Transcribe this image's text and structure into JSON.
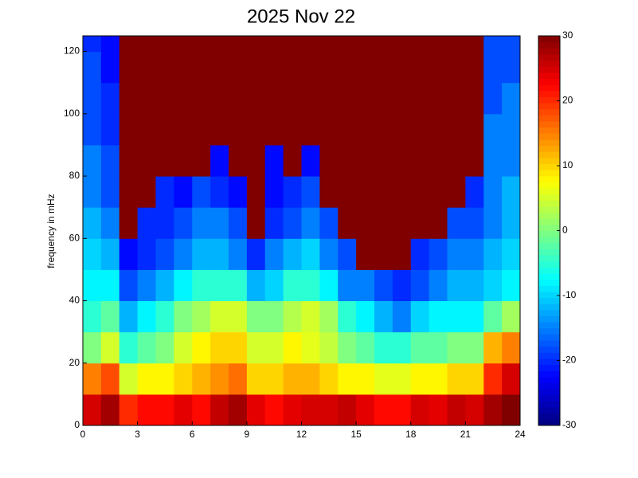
{
  "chart_data": {
    "type": "heatmap",
    "title": "2025 Nov 22",
    "ylabel": "frequency in mHz",
    "colormap": "jet",
    "x_edges": [
      0,
      1,
      2,
      3,
      4,
      5,
      6,
      7,
      8,
      9,
      10,
      11,
      12,
      13,
      14,
      15,
      16,
      17,
      18,
      19,
      20,
      21,
      22,
      23,
      24
    ],
    "y_edges": [
      0,
      10,
      20,
      30,
      40,
      50,
      60,
      70,
      80,
      90,
      100,
      110,
      120,
      125
    ],
    "values": [
      [
        25,
        28,
        20,
        22,
        22,
        24,
        22,
        26,
        28,
        24,
        22,
        24,
        25,
        25,
        26,
        24,
        22,
        22,
        25,
        24,
        26,
        25,
        28,
        30
      ],
      [
        15,
        18,
        5,
        8,
        8,
        10,
        12,
        14,
        16,
        10,
        10,
        12,
        12,
        10,
        8,
        8,
        6,
        6,
        8,
        8,
        10,
        10,
        20,
        25
      ],
      [
        0,
        5,
        -5,
        -2,
        0,
        5,
        8,
        10,
        10,
        5,
        5,
        8,
        6,
        4,
        0,
        -2,
        -5,
        -5,
        -2,
        -2,
        0,
        0,
        12,
        15
      ],
      [
        -5,
        -2,
        -12,
        -8,
        -5,
        0,
        2,
        5,
        5,
        0,
        0,
        3,
        5,
        2,
        -5,
        -8,
        -12,
        -15,
        -10,
        -8,
        -8,
        -8,
        -2,
        2
      ],
      [
        -8,
        -8,
        -18,
        -15,
        -12,
        -8,
        -5,
        -5,
        -5,
        -12,
        -10,
        -5,
        -5,
        -8,
        -15,
        -15,
        -18,
        -20,
        -18,
        -15,
        -12,
        -12,
        -10,
        -8
      ],
      [
        -10,
        -12,
        -22,
        -20,
        -18,
        -15,
        -12,
        -12,
        -15,
        -20,
        -15,
        -12,
        -10,
        -15,
        -18,
        30,
        30,
        30,
        -20,
        -18,
        -15,
        -15,
        -12,
        -10
      ],
      [
        -12,
        -15,
        30,
        -20,
        -20,
        -18,
        -15,
        -15,
        -18,
        30,
        -20,
        -18,
        -15,
        -18,
        30,
        30,
        30,
        30,
        30,
        30,
        -18,
        -18,
        -15,
        -12
      ],
      [
        -15,
        -18,
        30,
        30,
        -20,
        -22,
        -18,
        -20,
        -22,
        30,
        -22,
        -20,
        -18,
        30,
        30,
        30,
        30,
        30,
        30,
        30,
        30,
        -20,
        -15,
        -12
      ],
      [
        -15,
        -18,
        30,
        30,
        30,
        30,
        30,
        -22,
        30,
        30,
        -22,
        30,
        -22,
        30,
        30,
        30,
        30,
        30,
        30,
        30,
        30,
        30,
        -15,
        -15
      ],
      [
        -18,
        -20,
        30,
        30,
        30,
        30,
        30,
        30,
        30,
        30,
        30,
        30,
        30,
        30,
        30,
        30,
        30,
        30,
        30,
        30,
        30,
        30,
        -15,
        -15
      ],
      [
        -18,
        -20,
        30,
        30,
        30,
        30,
        30,
        30,
        30,
        30,
        30,
        30,
        30,
        30,
        30,
        30,
        30,
        30,
        30,
        30,
        30,
        30,
        -18,
        -15
      ],
      [
        -18,
        -22,
        30,
        30,
        30,
        30,
        30,
        30,
        30,
        30,
        30,
        30,
        30,
        30,
        30,
        30,
        30,
        30,
        30,
        30,
        30,
        30,
        -18,
        -18
      ],
      [
        -20,
        -22,
        30,
        30,
        30,
        30,
        30,
        30,
        30,
        30,
        30,
        30,
        30,
        30,
        30,
        30,
        30,
        30,
        30,
        30,
        30,
        30,
        -18,
        -18
      ]
    ],
    "xlim": [
      0,
      24
    ],
    "xticks": [
      0,
      3,
      6,
      9,
      12,
      15,
      18,
      21,
      24
    ],
    "ylim": [
      0,
      125
    ],
    "yticks": [
      0,
      20,
      40,
      60,
      80,
      100,
      120
    ],
    "clim": [
      -30,
      30
    ],
    "cticks": [
      -30,
      -20,
      -10,
      0,
      10,
      20,
      30
    ]
  }
}
